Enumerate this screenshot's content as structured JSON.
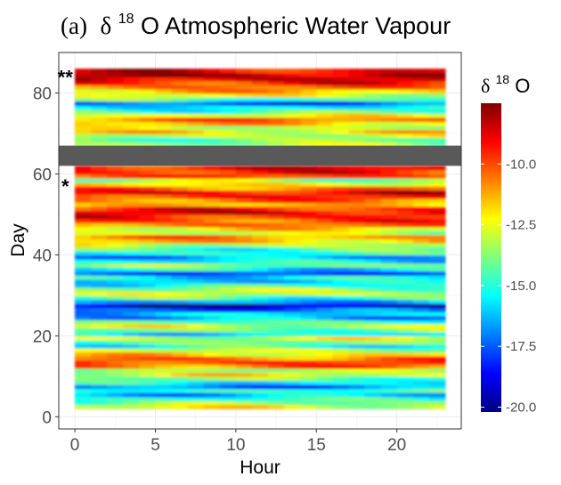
{
  "chart_data": {
    "type": "heatmap",
    "title_panel": "(a)",
    "title_symbol": "δ",
    "title_superscript": "18",
    "title_rest": "O Atmospheric Water Vapour",
    "xlabel": "Hour",
    "ylabel": "Day",
    "xlim": [
      -1,
      24
    ],
    "ylim": [
      -3,
      90
    ],
    "x_ticks": [
      0,
      5,
      10,
      15,
      20
    ],
    "x_tick_labels": [
      "0",
      "5",
      "10",
      "15",
      "20"
    ],
    "y_ticks": [
      0,
      20,
      40,
      60,
      80
    ],
    "y_tick_labels": [
      "0",
      "20",
      "40",
      "60",
      "80"
    ],
    "grid": true,
    "hours": [
      0,
      23
    ],
    "days": [
      2,
      85
    ],
    "legend": {
      "title_symbol": "δ",
      "title_superscript": "18",
      "title_rest": "O",
      "position": "right",
      "range": [
        -20.2,
        -7.5
      ],
      "ticks": [
        -10.0,
        -12.5,
        -15.0,
        -17.5,
        -20.0
      ],
      "tick_labels": [
        "-10.0",
        "-12.5",
        "-15.0",
        "-17.5",
        "-20.0"
      ],
      "colors": [
        "#00007f",
        "#0000ff",
        "#007fff",
        "#00ffff",
        "#7fff7f",
        "#ffff00",
        "#ff7f00",
        "#ff0000",
        "#7f0000"
      ]
    },
    "gap_band": {
      "day_from": 62,
      "day_to": 67,
      "color": "#595959"
    },
    "annotations": [
      {
        "text": "**",
        "x": -0.6,
        "y": 84
      },
      {
        "text": "*",
        "x": -0.6,
        "y": 57
      }
    ],
    "day_profile": [
      {
        "day": 2,
        "value": -12.5
      },
      {
        "day": 3,
        "value": -13.8
      },
      {
        "day": 4,
        "value": -15.0
      },
      {
        "day": 5,
        "value": -16.2
      },
      {
        "day": 6,
        "value": -14.8
      },
      {
        "day": 7,
        "value": -17.0
      },
      {
        "day": 8,
        "value": -15.5
      },
      {
        "day": 9,
        "value": -14.0
      },
      {
        "day": 10,
        "value": -12.5
      },
      {
        "day": 11,
        "value": -13.5
      },
      {
        "day": 12,
        "value": -10.5
      },
      {
        "day": 13,
        "value": -9.8
      },
      {
        "day": 14,
        "value": -10.5
      },
      {
        "day": 15,
        "value": -12.0
      },
      {
        "day": 16,
        "value": -13.0
      },
      {
        "day": 17,
        "value": -15.0
      },
      {
        "day": 18,
        "value": -14.0
      },
      {
        "day": 19,
        "value": -13.0
      },
      {
        "day": 20,
        "value": -15.5
      },
      {
        "day": 21,
        "value": -14.0
      },
      {
        "day": 22,
        "value": -13.0
      },
      {
        "day": 23,
        "value": -14.5
      },
      {
        "day": 24,
        "value": -16.5
      },
      {
        "day": 25,
        "value": -16.0
      },
      {
        "day": 26,
        "value": -17.5
      },
      {
        "day": 27,
        "value": -19.5
      },
      {
        "day": 28,
        "value": -16.5
      },
      {
        "day": 29,
        "value": -14.5
      },
      {
        "day": 30,
        "value": -13.0
      },
      {
        "day": 31,
        "value": -13.5
      },
      {
        "day": 32,
        "value": -15.0
      },
      {
        "day": 33,
        "value": -16.0
      },
      {
        "day": 34,
        "value": -15.5
      },
      {
        "day": 35,
        "value": -17.5
      },
      {
        "day": 36,
        "value": -15.5
      },
      {
        "day": 37,
        "value": -14.0
      },
      {
        "day": 38,
        "value": -15.5
      },
      {
        "day": 39,
        "value": -16.5
      },
      {
        "day": 40,
        "value": -15.0
      },
      {
        "day": 41,
        "value": -14.5
      },
      {
        "day": 42,
        "value": -13.0
      },
      {
        "day": 43,
        "value": -11.5
      },
      {
        "day": 44,
        "value": -11.0
      },
      {
        "day": 45,
        "value": -13.0
      },
      {
        "day": 46,
        "value": -12.0
      },
      {
        "day": 47,
        "value": -10.5
      },
      {
        "day": 48,
        "value": -10.0
      },
      {
        "day": 49,
        "value": -9.5
      },
      {
        "day": 50,
        "value": -8.8
      },
      {
        "day": 51,
        "value": -9.5
      },
      {
        "day": 52,
        "value": -11.5
      },
      {
        "day": 53,
        "value": -10.5
      },
      {
        "day": 54,
        "value": -9.5
      },
      {
        "day": 55,
        "value": -9.0
      },
      {
        "day": 56,
        "value": -10.5
      },
      {
        "day": 57,
        "value": -12.0
      },
      {
        "day": 58,
        "value": -13.5
      },
      {
        "day": 59,
        "value": -10.0
      },
      {
        "day": 60,
        "value": -9.5
      },
      {
        "day": 61,
        "value": -9.0
      },
      {
        "day": 62,
        "value": -10.5
      },
      {
        "day": 67,
        "value": -13.5
      },
      {
        "day": 68,
        "value": -14.0
      },
      {
        "day": 69,
        "value": -13.0
      },
      {
        "day": 70,
        "value": -12.0
      },
      {
        "day": 71,
        "value": -13.0
      },
      {
        "day": 72,
        "value": -11.5
      },
      {
        "day": 73,
        "value": -10.5
      },
      {
        "day": 74,
        "value": -12.5
      },
      {
        "day": 75,
        "value": -14.5
      },
      {
        "day": 76,
        "value": -15.5
      },
      {
        "day": 77,
        "value": -17.5
      },
      {
        "day": 78,
        "value": -14.5
      },
      {
        "day": 79,
        "value": -12.5
      },
      {
        "day": 80,
        "value": -11.5
      },
      {
        "day": 81,
        "value": -10.5
      },
      {
        "day": 82,
        "value": -9.5
      },
      {
        "day": 83,
        "value": -8.5
      },
      {
        "day": 84,
        "value": -8.0
      },
      {
        "day": 85,
        "value": -9.0
      }
    ]
  }
}
